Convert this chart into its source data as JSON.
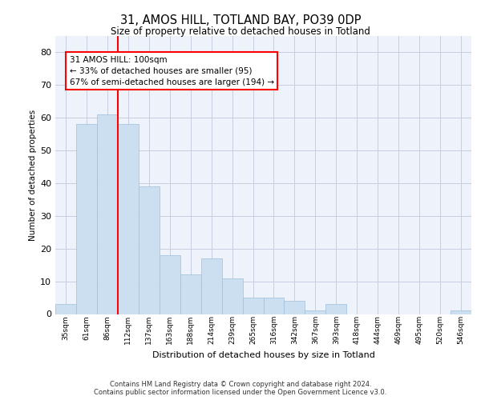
{
  "title1": "31, AMOS HILL, TOTLAND BAY, PO39 0DP",
  "title2": "Size of property relative to detached houses in Totland",
  "xlabel": "Distribution of detached houses by size in Totland",
  "ylabel": "Number of detached properties",
  "categories": [
    "35sqm",
    "61sqm",
    "86sqm",
    "112sqm",
    "137sqm",
    "163sqm",
    "188sqm",
    "214sqm",
    "239sqm",
    "265sqm",
    "316sqm",
    "342sqm",
    "367sqm",
    "393sqm",
    "418sqm",
    "444sqm",
    "469sqm",
    "495sqm",
    "520sqm",
    "546sqm"
  ],
  "values": [
    3,
    58,
    61,
    58,
    39,
    18,
    12,
    17,
    11,
    5,
    5,
    4,
    1,
    3,
    0,
    0,
    0,
    0,
    0,
    1
  ],
  "bar_color": "#ccdff0",
  "bar_edgecolor": "#9dbfda",
  "red_line_x": 2.5,
  "annotation_line1": "31 AMOS HILL: 100sqm",
  "annotation_line2": "← 33% of detached houses are smaller (95)",
  "annotation_line3": "67% of semi-detached houses are larger (194) →",
  "ylim": [
    0,
    85
  ],
  "yticks": [
    0,
    10,
    20,
    30,
    40,
    50,
    60,
    70,
    80
  ],
  "footer_line1": "Contains HM Land Registry data © Crown copyright and database right 2024.",
  "footer_line2": "Contains public sector information licensed under the Open Government Licence v3.0.",
  "background_color": "#edf2fb",
  "grid_color": "#c5cde0"
}
